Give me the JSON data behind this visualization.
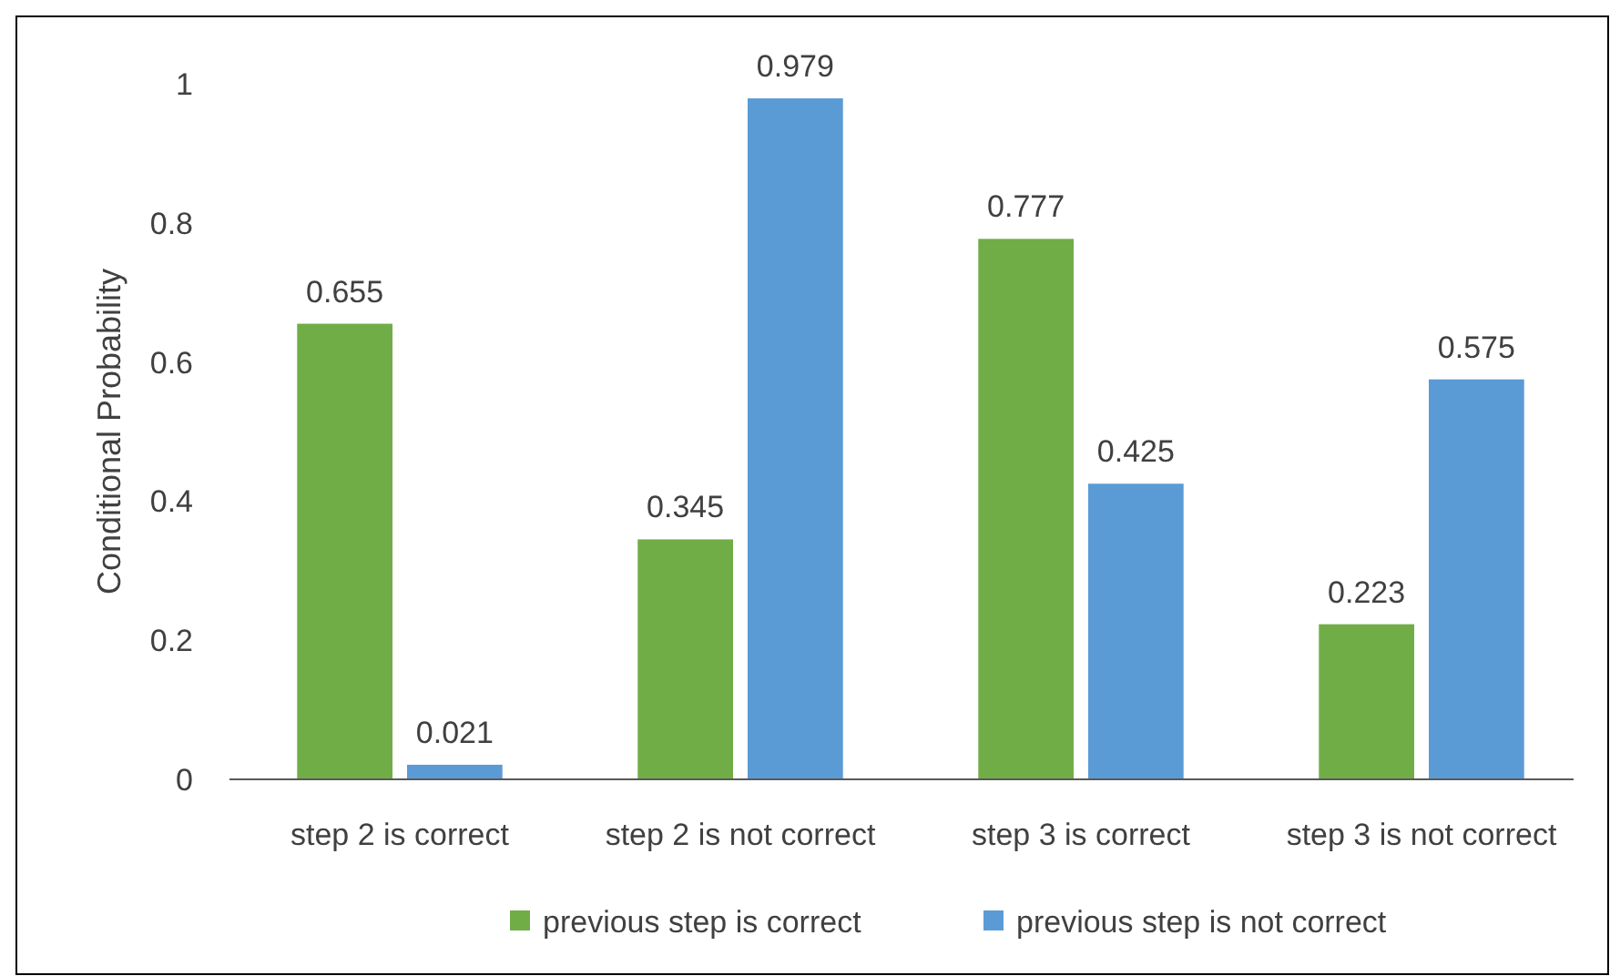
{
  "chart_data": {
    "type": "bar",
    "ylabel": "Conditional Probability",
    "categories": [
      "step 2 is correct",
      "step 2 is not correct",
      "step 3 is correct",
      "step 3 is not correct"
    ],
    "series": [
      {
        "name": "previous step is correct",
        "color": "#70ad47",
        "values": [
          0.655,
          0.345,
          0.777,
          0.223
        ]
      },
      {
        "name": "previous step is not correct",
        "color": "#5b9bd5",
        "values": [
          0.021,
          0.979,
          0.425,
          0.575
        ]
      }
    ],
    "ylim": [
      0,
      1
    ],
    "yticks": [
      0,
      0.2,
      0.4,
      0.6,
      0.8,
      1
    ],
    "data_labels": true,
    "grid": false,
    "legend": "bottom"
  }
}
